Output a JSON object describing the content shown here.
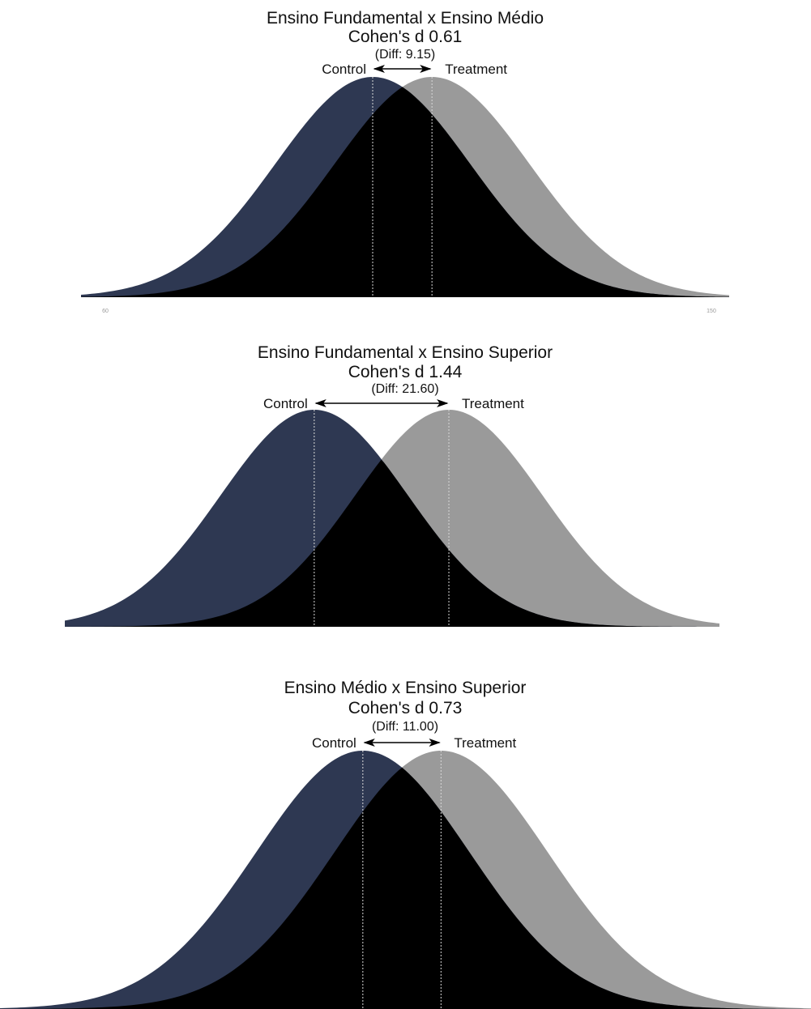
{
  "colors": {
    "control": "#2e3852",
    "treatment": "#9a9a9a",
    "overlap": "#000000",
    "mean_line": "#d8d8d8"
  },
  "chart_data": [
    {
      "type": "area",
      "title": "Ensino Fundamental x Ensino Médio",
      "subtitle": "Cohen's d 0.61",
      "diff_label": "(Diff: 9.15)",
      "cohens_d": 0.61,
      "diff": 9.15,
      "series": [
        {
          "name": "Control",
          "mean": 100,
          "sd": 15
        },
        {
          "name": "Treatment",
          "mean": 109.15,
          "sd": 15
        }
      ],
      "xlim": [
        55,
        155
      ],
      "x_ticks": [
        "60",
        "150"
      ],
      "grid": false
    },
    {
      "type": "area",
      "title": "Ensino Fundamental x Ensino Superior",
      "subtitle": "Cohen's d 1.44",
      "diff_label": "(Diff: 21.60)",
      "cohens_d": 1.44,
      "diff": 21.6,
      "series": [
        {
          "name": "Control",
          "mean": 100,
          "sd": 15
        },
        {
          "name": "Treatment",
          "mean": 121.6,
          "sd": 15
        }
      ],
      "xlim": [
        60,
        165
      ],
      "x_ticks": [],
      "grid": false
    },
    {
      "type": "area",
      "title": "Ensino Médio x Ensino Superior",
      "subtitle": "Cohen's d 0.73",
      "diff_label": "(Diff: 11.00)",
      "cohens_d": 0.73,
      "diff": 11.0,
      "series": [
        {
          "name": "Control",
          "mean": 100,
          "sd": 15
        },
        {
          "name": "Treatment",
          "mean": 111.0,
          "sd": 15
        }
      ],
      "xlim": [
        49,
        163
      ],
      "x_ticks": [],
      "grid": false
    }
  ]
}
